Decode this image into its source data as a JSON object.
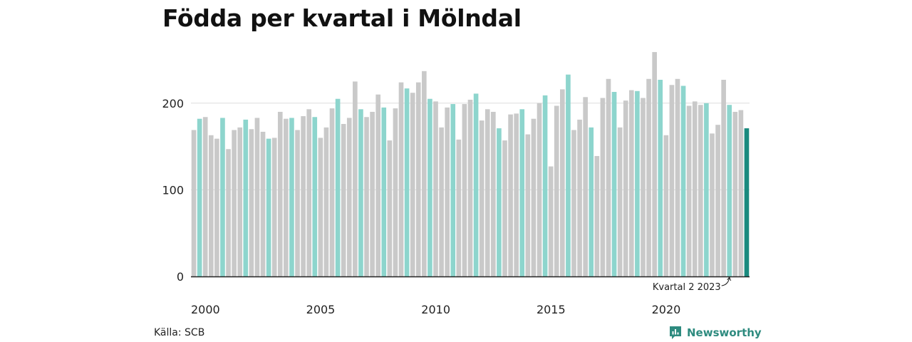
{
  "title": "Födda per kvartal i Mölndal",
  "source": "Källa: SCB",
  "brand": {
    "name": "Newsworthy",
    "icon": "newsworthy-logo-icon"
  },
  "colors": {
    "q2": "#8dd5cd",
    "other": "#c9c9c9",
    "latest": "#1a8a7e",
    "grid": "#dddddd",
    "axis": "#222222",
    "brand": "#2e8b7f"
  },
  "chart_data": {
    "type": "bar",
    "title": "Födda per kvartal i Mölndal",
    "xlabel": "",
    "ylabel": "",
    "ylim": [
      0,
      250
    ],
    "yticks": [
      0,
      100,
      200
    ],
    "xticks": [
      "2000",
      "2005",
      "2010",
      "2015",
      "2020"
    ],
    "grid": true,
    "start": {
      "year": 2000,
      "quarter": 1
    },
    "annotation": {
      "text": "Kvartal 2 2023",
      "target_index": 93
    },
    "highlight": "Andra kvartalet varje år (ljusturkos), senaste kvartalet (mörkturkos)",
    "values": [
      169,
      182,
      184,
      163,
      159,
      183,
      147,
      169,
      172,
      181,
      170,
      183,
      167,
      159,
      160,
      190,
      182,
      183,
      169,
      185,
      193,
      184,
      160,
      172,
      194,
      205,
      176,
      183,
      225,
      193,
      184,
      190,
      210,
      195,
      157,
      194,
      224,
      217,
      212,
      224,
      237,
      205,
      202,
      172,
      195,
      199,
      158,
      199,
      204,
      211,
      180,
      193,
      190,
      171,
      157,
      187,
      188,
      193,
      164,
      182,
      200,
      209,
      127,
      197,
      216,
      233,
      169,
      181,
      207,
      172,
      139,
      206,
      228,
      213,
      172,
      203,
      215,
      214,
      206,
      228,
      259,
      227,
      163,
      221,
      228,
      220,
      197,
      202,
      198,
      200,
      165,
      175,
      227,
      198,
      190,
      192,
      171
    ]
  }
}
